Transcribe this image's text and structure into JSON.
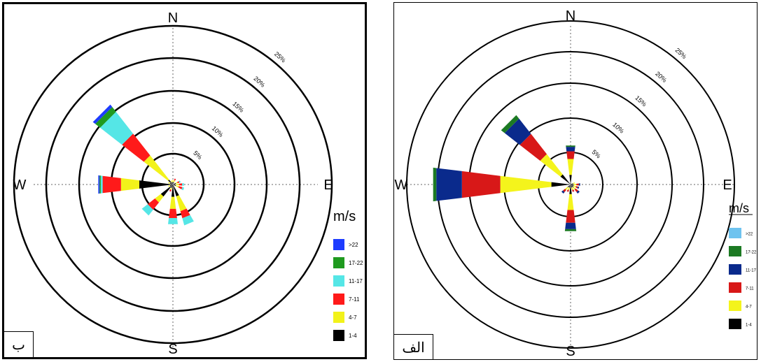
{
  "chart_data": [
    {
      "type": "wind-rose",
      "panel_label": "ب",
      "compass": {
        "n": "N",
        "e": "E",
        "s": "S",
        "w": "W"
      },
      "ring_percent_labels": [
        "5%",
        "10%",
        "15%",
        "20%",
        "25%"
      ],
      "rings_percent": [
        5,
        10,
        15,
        20,
        25
      ],
      "legend_title": "m/s",
      "speed_bins": [
        {
          "label": ">22",
          "color": "#1d3cff"
        },
        {
          "label": "17-22",
          "color": "#1f9a1f"
        },
        {
          "label": "11-17",
          "color": "#55e6e6"
        },
        {
          "label": "7-11",
          "color": "#ff1a1a"
        },
        {
          "label": "4-7",
          "color": "#f2f21a"
        },
        {
          "label": "1-4",
          "color": "#000000"
        }
      ],
      "directions": [
        {
          "dir_deg": 315,
          "segments_percent": [
            1,
            5,
            4.5,
            4.5,
            1,
            0.5
          ]
        },
        {
          "dir_deg": 270,
          "segments_percent": [
            5.5,
            3,
            3,
            0.3,
            0.2,
            0.2
          ]
        },
        {
          "dir_deg": 225,
          "segments_percent": [
            2.5,
            1.2,
            1.5,
            1.2,
            0,
            0
          ]
        },
        {
          "dir_deg": 180,
          "segments_percent": [
            2,
            2,
            1.5,
            1,
            0,
            0
          ]
        },
        {
          "dir_deg": 157.5,
          "segments_percent": [
            2,
            2.5,
            1.2,
            1.2,
            0,
            0
          ]
        },
        {
          "dir_deg": 112.5,
          "segments_percent": [
            0.5,
            0.5,
            0.6,
            0.3,
            0,
            0
          ]
        },
        {
          "dir_deg": 90,
          "segments_percent": [
            0.5,
            0.5,
            0.5,
            0.3,
            0,
            0
          ]
        },
        {
          "dir_deg": 67.5,
          "segments_percent": [
            0.5,
            0.3,
            0.3,
            0.2,
            0,
            0
          ]
        },
        {
          "dir_deg": 22.5,
          "segments_percent": [
            0.4,
            0.3,
            0.3,
            0,
            0,
            0
          ]
        },
        {
          "dir_deg": 0,
          "segments_percent": [
            0.4,
            0.3,
            0,
            0,
            0,
            0
          ]
        },
        {
          "dir_deg": 202.5,
          "segments_percent": [
            0.6,
            0.3,
            0.3,
            0,
            0,
            0
          ]
        },
        {
          "dir_deg": 247.5,
          "segments_percent": [
            0.5,
            0.3,
            0,
            0,
            0,
            0
          ]
        },
        {
          "dir_deg": 292.5,
          "segments_percent": [
            0.5,
            0.3,
            0,
            0,
            0,
            0
          ]
        },
        {
          "dir_deg": 337.5,
          "segments_percent": [
            0.4,
            0.3,
            0,
            0,
            0,
            0
          ]
        }
      ]
    },
    {
      "type": "wind-rose",
      "panel_label": "الف",
      "compass": {
        "n": "N",
        "e": "E",
        "s": "S",
        "w": "W"
      },
      "ring_percent_labels": [
        "5%",
        "10%",
        "15%",
        "20%",
        "25%"
      ],
      "rings_percent": [
        5,
        10,
        15,
        20,
        25
      ],
      "legend_title": "m/s",
      "speed_bins": [
        {
          "label": ">22",
          "color": "#6ec3ef"
        },
        {
          "label": "17-22",
          "color": "#1c7a23"
        },
        {
          "label": "11-17",
          "color": "#0a2a8c"
        },
        {
          "label": "7-11",
          "color": "#d81818"
        },
        {
          "label": "4-7",
          "color": "#f4f41c"
        },
        {
          "label": "1-4",
          "color": "#000000"
        }
      ],
      "directions": [
        {
          "dir_deg": 270,
          "segments_percent": [
            3,
            8,
            6,
            4,
            0.5,
            0
          ]
        },
        {
          "dir_deg": 315,
          "segments_percent": [
            2,
            4,
            4,
            3,
            0.7,
            0
          ]
        },
        {
          "dir_deg": 0,
          "segments_percent": [
            1.5,
            2.5,
            1.2,
            0.7,
            0.2,
            0
          ]
        },
        {
          "dir_deg": 180,
          "segments_percent": [
            1.5,
            2.5,
            2,
            1,
            0.3,
            0
          ]
        },
        {
          "dir_deg": 90,
          "segments_percent": [
            0.5,
            0.4,
            0.4,
            0.2,
            0,
            0
          ]
        },
        {
          "dir_deg": 112.5,
          "segments_percent": [
            0.5,
            0.4,
            0.3,
            0.2,
            0,
            0
          ]
        },
        {
          "dir_deg": 135,
          "segments_percent": [
            0.6,
            0.4,
            0.5,
            0.3,
            0,
            0
          ]
        },
        {
          "dir_deg": 157.5,
          "segments_percent": [
            0.5,
            0.4,
            0.3,
            0,
            0,
            0
          ]
        },
        {
          "dir_deg": 202.5,
          "segments_percent": [
            0.5,
            0.4,
            0.3,
            0,
            0,
            0
          ]
        },
        {
          "dir_deg": 225,
          "segments_percent": [
            0.6,
            0.5,
            0.4,
            0.3,
            0,
            0
          ]
        },
        {
          "dir_deg": 67.5,
          "segments_percent": [
            0.4,
            0.3,
            0,
            0,
            0,
            0
          ]
        }
      ]
    }
  ]
}
